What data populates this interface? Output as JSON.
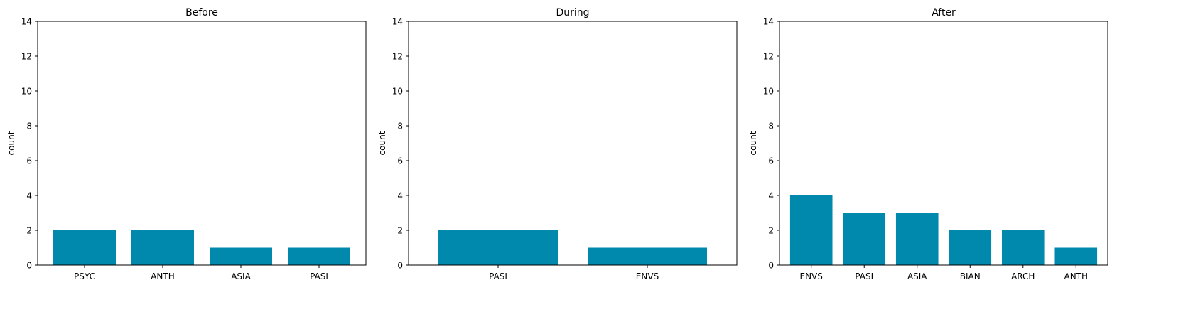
{
  "colors": {
    "bar": "#0088ad",
    "axis": "#000000",
    "background": "#ffffff"
  },
  "chart_data": [
    {
      "type": "bar",
      "title": "Before",
      "xlabel": "",
      "ylabel": "count",
      "ylim": [
        0,
        14
      ],
      "yticks": [
        0,
        2,
        4,
        6,
        8,
        10,
        12,
        14
      ],
      "grid": false,
      "categories": [
        "PSYC",
        "ANTH",
        "ASIA",
        "PASI"
      ],
      "values": [
        2,
        2,
        1,
        1
      ]
    },
    {
      "type": "bar",
      "title": "During",
      "xlabel": "",
      "ylabel": "count",
      "ylim": [
        0,
        14
      ],
      "yticks": [
        0,
        2,
        4,
        6,
        8,
        10,
        12,
        14
      ],
      "grid": false,
      "categories": [
        "PASI",
        "ENVS"
      ],
      "values": [
        2,
        1
      ]
    },
    {
      "type": "bar",
      "title": "After",
      "xlabel": "",
      "ylabel": "count",
      "ylim": [
        0,
        14
      ],
      "yticks": [
        0,
        2,
        4,
        6,
        8,
        10,
        12,
        14
      ],
      "grid": false,
      "categories": [
        "ENVS",
        "PASI",
        "ASIA",
        "BIAN",
        "ARCH",
        "ANTH"
      ],
      "values": [
        4,
        3,
        3,
        2,
        2,
        1
      ]
    }
  ]
}
